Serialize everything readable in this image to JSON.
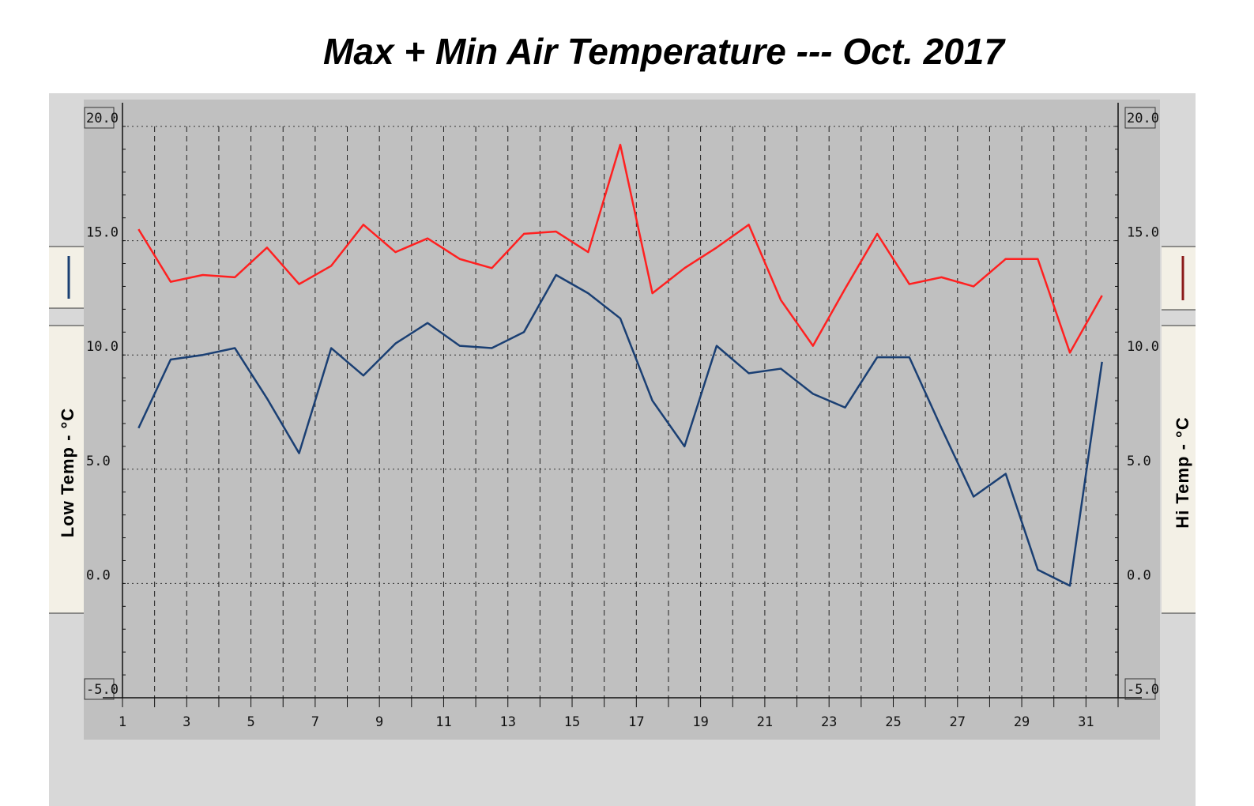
{
  "title": "Max + Min Air Temperature --- Oct. 2017",
  "chart_data": {
    "type": "line",
    "title": "Max + Min Air Temperature --- Oct. 2017",
    "xlabel": "",
    "ylabel_left": "Low Temp - °C",
    "ylabel_right": "Hi Temp - °C",
    "ylim": [
      -5,
      20
    ],
    "xlim": [
      1,
      32
    ],
    "y_ticks": [
      "20.0",
      "15.0",
      "10.0",
      "5.0",
      "0.0",
      "-5.0"
    ],
    "x_ticks": [
      1,
      3,
      5,
      7,
      9,
      11,
      13,
      15,
      17,
      19,
      21,
      23,
      25,
      27,
      29,
      31
    ],
    "grid": true,
    "series": [
      {
        "name": "",
        "color": "#ff2020",
        "x": [
          1.5,
          2.5,
          3.5,
          4.5,
          5.5,
          6.5,
          7.5,
          8.5,
          9.5,
          10.5,
          11.5,
          12.5,
          13.5,
          14.5,
          15.5,
          16.5,
          17.5,
          18.5,
          19.5,
          20.5,
          21.5,
          22.5,
          23.5,
          24.5,
          25.5,
          26.5,
          27.5,
          28.5,
          29.5,
          30.5,
          31.5
        ],
        "values": [
          15.5,
          13.2,
          13.5,
          13.4,
          14.7,
          13.1,
          13.9,
          15.7,
          14.5,
          15.1,
          14.2,
          13.8,
          15.3,
          15.4,
          14.5,
          19.2,
          12.7,
          13.8,
          14.7,
          15.7,
          12.4,
          10.4,
          12.9,
          15.3,
          13.1,
          13.4,
          13.0,
          14.2,
          14.2,
          10.1,
          12.6
        ]
      },
      {
        "name": "",
        "color": "#1a3f73",
        "x": [
          1.5,
          2.5,
          3.5,
          4.5,
          5.5,
          6.5,
          7.5,
          8.5,
          9.5,
          10.5,
          11.5,
          12.5,
          13.5,
          14.5,
          15.5,
          16.5,
          17.5,
          18.5,
          19.5,
          20.5,
          21.5,
          22.5,
          23.5,
          24.5,
          25.5,
          26.5,
          27.5,
          28.5,
          29.5,
          30.5,
          31.5
        ],
        "values": [
          6.8,
          9.8,
          10.0,
          10.3,
          8.1,
          5.7,
          10.3,
          9.1,
          10.5,
          11.4,
          10.4,
          10.3,
          11.0,
          13.5,
          12.7,
          11.6,
          8.0,
          6.0,
          10.4,
          9.2,
          9.4,
          8.3,
          7.7,
          9.9,
          9.9,
          6.8,
          3.8,
          4.8,
          0.6,
          -0.1,
          9.7
        ]
      }
    ]
  }
}
